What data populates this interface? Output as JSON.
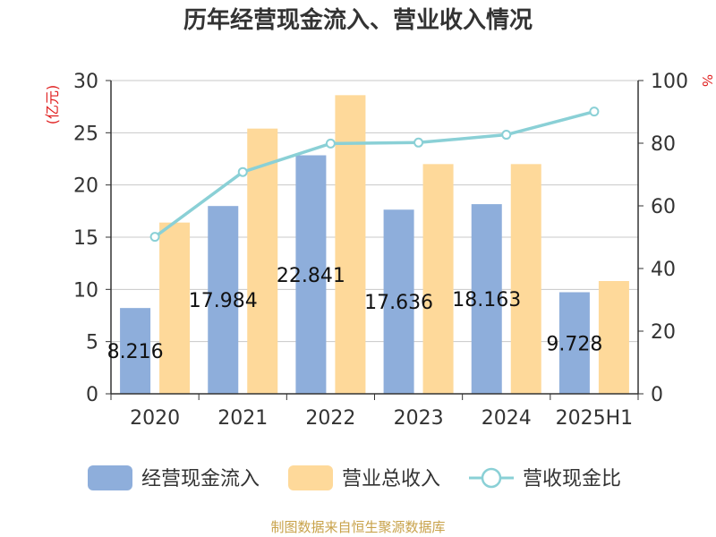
{
  "chart_data": {
    "type": "bar",
    "title": "历年经营现金流入、营业收入情况",
    "y_left_label": "(亿元)",
    "y_right_label": "%",
    "categories": [
      "2020",
      "2021",
      "2022",
      "2023",
      "2024",
      "2025H1"
    ],
    "y_left_ticks": [
      "0",
      "5",
      "10",
      "15",
      "20",
      "25",
      "30"
    ],
    "y_right_ticks": [
      "0",
      "20",
      "40",
      "60",
      "80",
      "100"
    ],
    "ylim_left": [
      0,
      30
    ],
    "ylim_right": [
      0,
      100
    ],
    "grid": true,
    "legend_position": "bottom",
    "series": [
      {
        "name": "经营现金流入",
        "type": "bar",
        "axis": "left",
        "color": "#8eaedb",
        "values": [
          8.216,
          17.984,
          22.841,
          17.636,
          18.163,
          9.728
        ],
        "labels": [
          "8.216",
          "17.984",
          "22.841",
          "17.636",
          "18.163",
          "9.728"
        ]
      },
      {
        "name": "营业总收入",
        "type": "bar",
        "axis": "left",
        "color": "#fed99a",
        "values": [
          16.4,
          25.4,
          28.6,
          22.0,
          22.0,
          10.8
        ]
      },
      {
        "name": "营收现金比",
        "type": "line",
        "axis": "right",
        "color": "#8ad0d6",
        "values": [
          50.1,
          70.8,
          79.9,
          80.2,
          82.7,
          90.1
        ]
      }
    ]
  },
  "footer": "制图数据来自恒生聚源数据库"
}
